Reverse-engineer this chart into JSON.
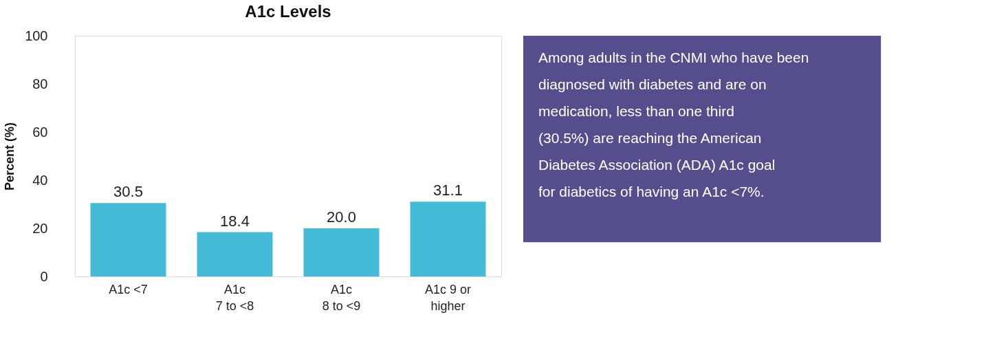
{
  "chart_data": {
    "type": "bar",
    "title": "A1c Levels",
    "ylabel": "Percent (%)",
    "categories": [
      "A1c <7",
      "A1c\n7 to <8",
      "A1c\n8 to <9",
      "A1c 9 or\nhigher"
    ],
    "values": [
      30.5,
      18.4,
      20.0,
      31.1
    ],
    "color": "#44bcd8",
    "ylim": [
      0,
      100
    ],
    "yticks": [
      0,
      20,
      40,
      60,
      80,
      100
    ],
    "grid": false,
    "value_labels": [
      "30.5",
      "18.4",
      "20.0",
      "31.1"
    ],
    "annotations": [
      "Among adults in the CNMI who have been diagnosed with diabetes and are on medication, less than one third (30.5%) are reaching the American Diabetes Association (ADA) A1c goal for diabetics of having an A1c <7%."
    ]
  }
}
